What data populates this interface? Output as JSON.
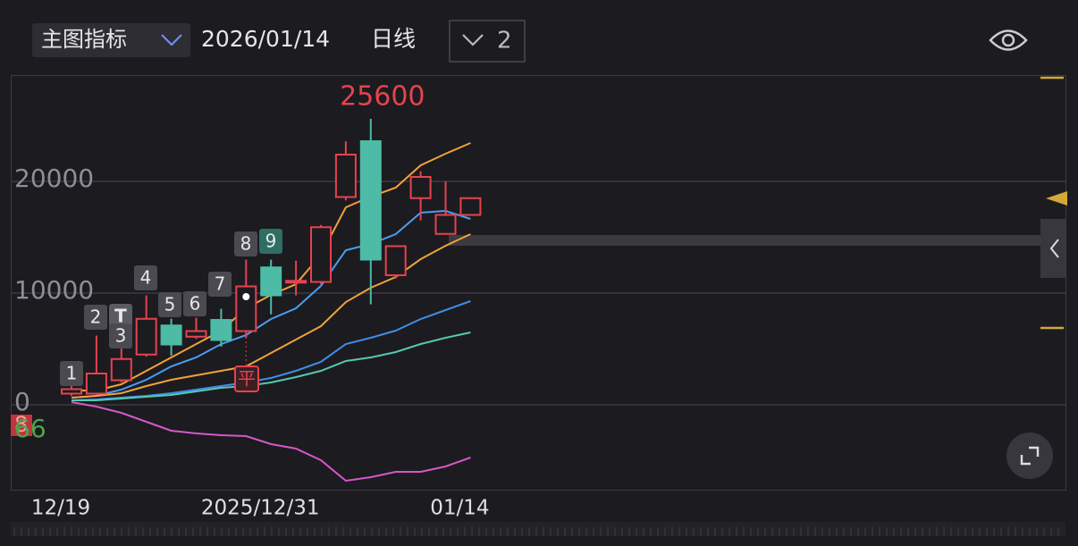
{
  "header": {
    "indicator": "主图指标",
    "date": "2026/01/14",
    "period": "日线",
    "count": "2"
  },
  "chart_data": {
    "type": "candlestick",
    "categories": [
      "12/19",
      null,
      null,
      null,
      null,
      null,
      null,
      null,
      "2025/12/31",
      null,
      null,
      null,
      null,
      null,
      null,
      null,
      "01/14"
    ],
    "open": [
      1000,
      1000,
      2200,
      4500,
      7100,
      6100,
      7600,
      6600,
      12300,
      11000,
      11000,
      18600,
      23600,
      11600,
      18500,
      15300,
      17000
    ],
    "high": [
      1700,
      6200,
      5200,
      9800,
      7700,
      7800,
      8600,
      13000,
      13000,
      12900,
      16100,
      23600,
      25600,
      14200,
      20900,
      20000,
      18500
    ],
    "low": [
      800,
      900,
      2000,
      4300,
      4400,
      5900,
      5200,
      6000,
      8100,
      9800,
      10800,
      18300,
      9000,
      11300,
      16500,
      15300,
      17000
    ],
    "close": [
      1400,
      2800,
      4100,
      7700,
      5400,
      6600,
      5800,
      10600,
      9800,
      11100,
      15900,
      22400,
      13000,
      14200,
      20400,
      17000,
      18500
    ],
    "up_color": "#e5434d",
    "down_color": "#4dbba5",
    "series": [
      {
        "color": "#f0a23a",
        "values": [
          1280,
          1280,
          1840,
          3040,
          4240,
          5440,
          6640,
          8640,
          9840,
          10800,
          13440,
          17680,
          18640,
          19440,
          21440,
          22480,
          23440
        ]
      },
      {
        "color": "#4a9ef0",
        "values": [
          640,
          800,
          1360,
          2240,
          3440,
          4240,
          5440,
          6240,
          7680,
          8640,
          10640,
          13840,
          14400,
          15280,
          17200,
          17360,
          16640
        ]
      },
      {
        "color": "#f0a23a",
        "values": [
          640,
          800,
          1040,
          1680,
          2240,
          2640,
          3040,
          3440,
          4640,
          5840,
          7040,
          9200,
          10480,
          11440,
          13040,
          14240,
          15280
        ]
      },
      {
        "color": "#3f8de6",
        "values": [
          400,
          480,
          640,
          800,
          1040,
          1360,
          1680,
          2000,
          2400,
          3040,
          3840,
          5440,
          6000,
          6640,
          7680,
          8480,
          9280
        ]
      },
      {
        "color": "#56c8b0",
        "values": [
          400,
          400,
          560,
          720,
          880,
          1200,
          1520,
          1680,
          2000,
          2480,
          3040,
          3920,
          4240,
          4720,
          5440,
          6000,
          6480
        ]
      },
      {
        "color": "#d458c8",
        "values": [
          240,
          -160,
          -720,
          -1520,
          -2320,
          -2560,
          -2720,
          -2800,
          -3520,
          -3920,
          -4960,
          -6800,
          -6480,
          -6000,
          -6000,
          -5520,
          -4720
        ]
      }
    ],
    "ylim": [
      -7600,
      29520
    ],
    "yticks": [
      0,
      10000,
      20000
    ],
    "grid": true,
    "markers": [
      "1",
      "2",
      "T",
      "3",
      "4",
      "5",
      "6",
      "7",
      "8",
      "9",
      "平"
    ],
    "side_labels": [
      "8",
      "66"
    ]
  }
}
